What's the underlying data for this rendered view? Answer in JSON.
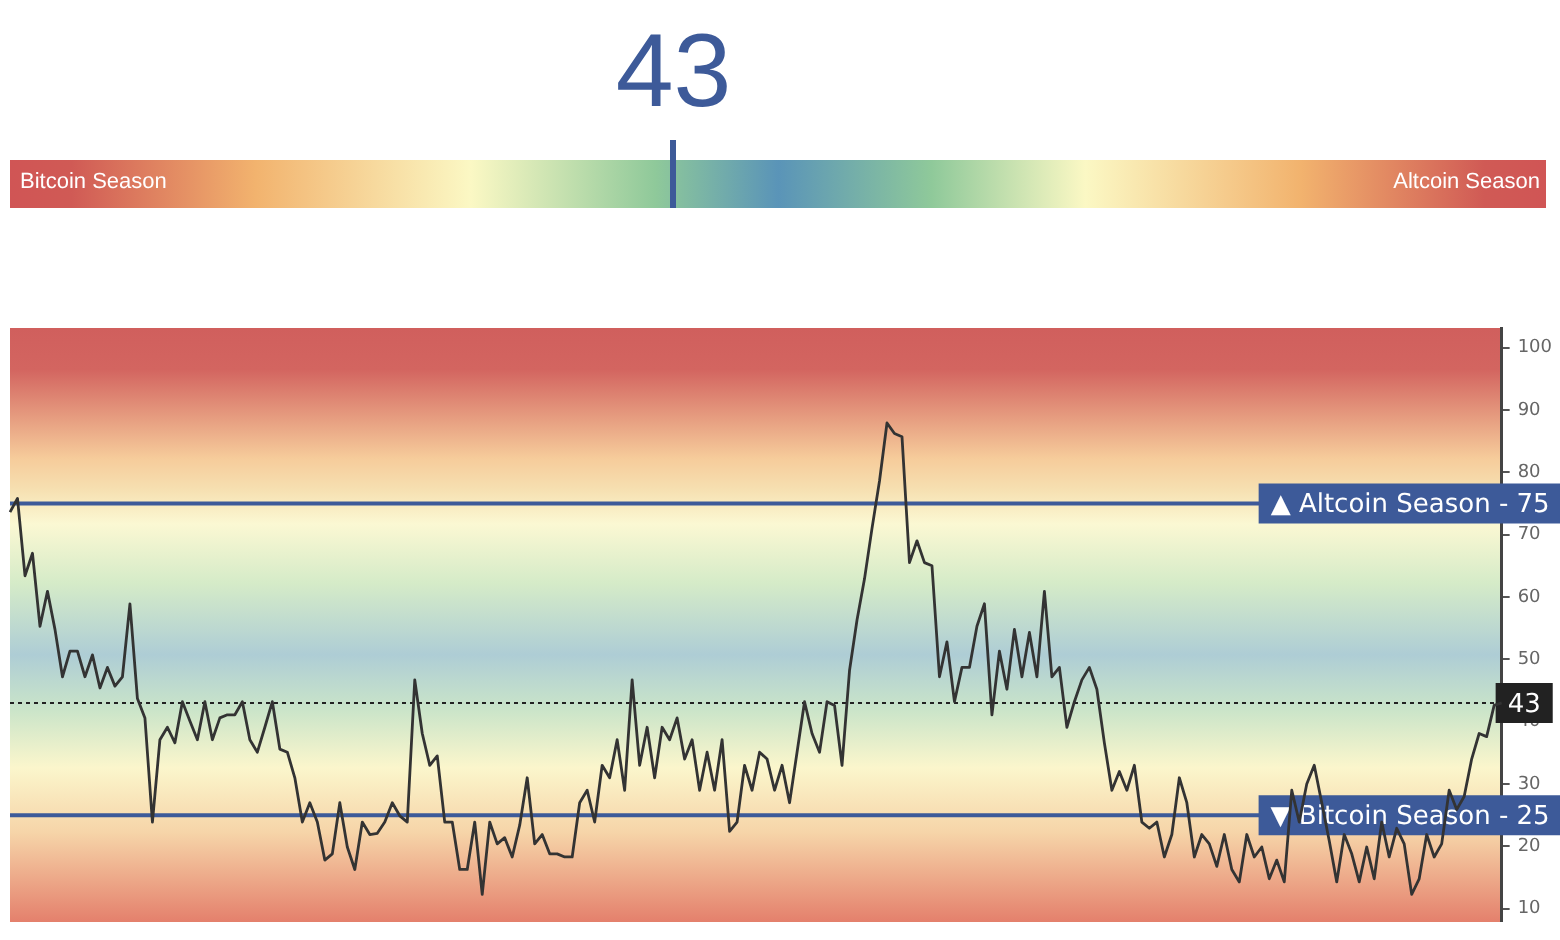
{
  "chart_data": [
    {
      "type": "other",
      "color": "#3d5a99",
      "annotations": [
        "43",
        "Bitcoin Season",
        "Altcoin Season"
      ]
    },
    {
      "type": "line",
      "categories": [
        null,
        null,
        null,
        null,
        null,
        null,
        null,
        null,
        null,
        null,
        null,
        null,
        null,
        null,
        null,
        null,
        null,
        null,
        null,
        null,
        null,
        null,
        null,
        null,
        null,
        null,
        null,
        null,
        null,
        null,
        null,
        null,
        null,
        null,
        null,
        null,
        null,
        null,
        null,
        null,
        null,
        null,
        null,
        null,
        null,
        null,
        null,
        null,
        null,
        null,
        null,
        null,
        null,
        null,
        null,
        null,
        null,
        null,
        null,
        null,
        null,
        null,
        null,
        null,
        null,
        null,
        null,
        null,
        null,
        null,
        null,
        null,
        null,
        null,
        null,
        null,
        null,
        null,
        null,
        null,
        null,
        null,
        null,
        null,
        null,
        null,
        null,
        null,
        null,
        null,
        null,
        null,
        null,
        null,
        null,
        null,
        null,
        null,
        null,
        null,
        null,
        null,
        null,
        null,
        null,
        null,
        null,
        null,
        null,
        null,
        null,
        null,
        null,
        null,
        null,
        null,
        null,
        null,
        null,
        null,
        null,
        null,
        null,
        null,
        null,
        null,
        null,
        null,
        null,
        null,
        null,
        null,
        null,
        null,
        null,
        null,
        null,
        null,
        null,
        null,
        null,
        null,
        null,
        null,
        null,
        null,
        null,
        null,
        null,
        null,
        null,
        null,
        null,
        null,
        null,
        null,
        null,
        null,
        null,
        null,
        null,
        null,
        null,
        null,
        null,
        null,
        null,
        null,
        null,
        null,
        null,
        null,
        null,
        null,
        null,
        null,
        null,
        null,
        null,
        null,
        null,
        null,
        null,
        null,
        null,
        null,
        null,
        null,
        null,
        null,
        null,
        null,
        null,
        null,
        null,
        null,
        null,
        null,
        null,
        null
      ],
      "series": [
        {
          "color": "#333333",
          "values": [
            73.6,
            75.8,
            63.4,
            67,
            55.3,
            60.9,
            54.8,
            47.2,
            51.3,
            51.3,
            47.2,
            50.7,
            45.4,
            48.7,
            45.7,
            47.2,
            58.9,
            43.7,
            40.6,
            23.9,
            37.1,
            39.1,
            36.6,
            43.2,
            40.1,
            37.1,
            43.2,
            37.1,
            40.6,
            41.1,
            41.1,
            43.2,
            37.1,
            35.1,
            39.1,
            43.2,
            35.6,
            35.1,
            31,
            23.9,
            27,
            23.9,
            17.8,
            18.8,
            27,
            19.9,
            16.3,
            23.9,
            21.9,
            22.1,
            23.9,
            27,
            24.9,
            23.9,
            46.7,
            38.1,
            33,
            34.5,
            23.9,
            23.9,
            16.3,
            16.3,
            23.9,
            12.3,
            23.9,
            20.4,
            21.4,
            18.3,
            23.4,
            31,
            20.4,
            21.9,
            18.8,
            18.8,
            18.3,
            18.3,
            27,
            29,
            23.9,
            33,
            31,
            37.1,
            29,
            46.7,
            33,
            39.1,
            31,
            39.1,
            37.1,
            40.6,
            34,
            37.1,
            29,
            35.1,
            29,
            37.1,
            22.4,
            23.9,
            33,
            29,
            35.1,
            34,
            29,
            33,
            27,
            35.1,
            43.2,
            38.1,
            35.1,
            43.2,
            42.6,
            33,
            48.2,
            56.3,
            62.9,
            71,
            78.6,
            87.9,
            86.2,
            85.7,
            65.5,
            69,
            65.5,
            65,
            47.2,
            52.8,
            43.2,
            48.7,
            48.7,
            55.3,
            58.9,
            41.1,
            51.3,
            45.2,
            54.8,
            47.2,
            54.3,
            47.2,
            60.9,
            47.2,
            48.7,
            39.1,
            43.2,
            46.7,
            48.7,
            45.2,
            36.6,
            29,
            32,
            29,
            33,
            23.9,
            22.9,
            23.9,
            18.3,
            21.9,
            31,
            27,
            18.3,
            21.9,
            20.4,
            16.8,
            21.9,
            16.3,
            14.3,
            21.9,
            18.3,
            19.9,
            14.8,
            17.8,
            14.3,
            29,
            23.9,
            30,
            33,
            27,
            20.9,
            14.3,
            21.9,
            18.8,
            14.3,
            19.9,
            14.8,
            23.9,
            18.3,
            22.9,
            20.4,
            12.3,
            14.8,
            21.9,
            18.3,
            20.4,
            29,
            25.9,
            28,
            34,
            38.1,
            37.6,
            42.6,
            43
          ]
        }
      ],
      "ylim": [
        8,
        103
      ],
      "yticks": [
        10,
        20,
        30,
        40,
        50,
        60,
        70,
        80,
        90,
        100
      ],
      "tick_labels": "y",
      "grid": false,
      "legend": false,
      "marker": "none",
      "line_style": "solid",
      "ref_lines": [
        {
          "axis": "y",
          "value": 75,
          "label": "▲ Altcoin Season - 75",
          "color": "#3d5a99",
          "line_style": "solid"
        },
        {
          "axis": "y",
          "value": 25,
          "label": "▼ Bitcoin Season - 25",
          "color": "#3d5a99",
          "line_style": "solid"
        },
        {
          "axis": "y",
          "value": 43,
          "label": "43",
          "color": "#222222",
          "line_style": "dotted"
        }
      ]
    }
  ]
}
